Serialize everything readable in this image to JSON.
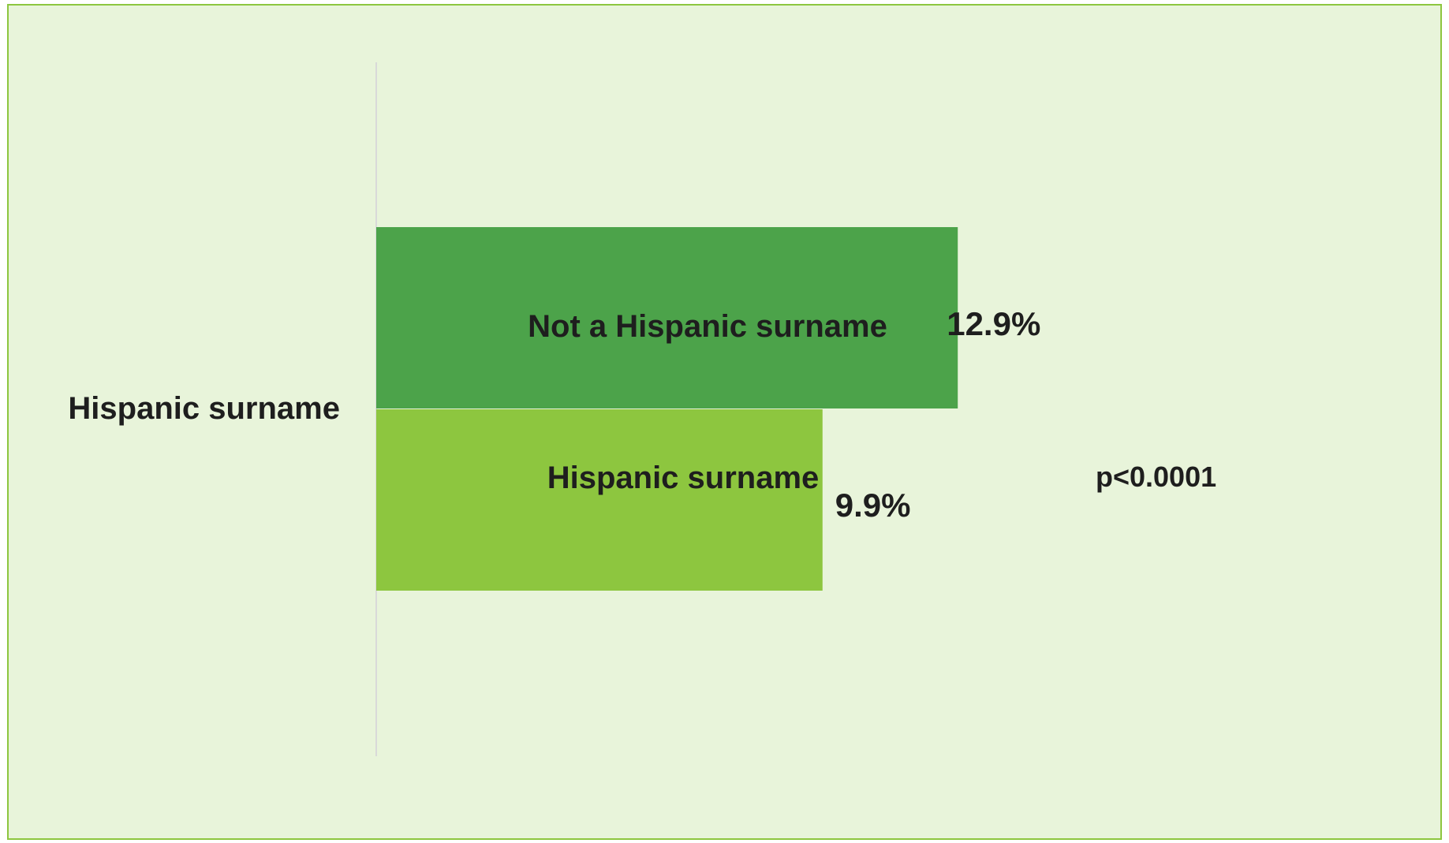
{
  "chart_data": {
    "type": "bar",
    "orientation": "horizontal",
    "categories": [
      "Hispanic surname"
    ],
    "series": [
      {
        "name": "Not a Hispanic surname",
        "values": [
          12.9
        ],
        "value_label": "12.9%",
        "color": "#4ca34a"
      },
      {
        "name": "Hispanic surname",
        "values": [
          9.9
        ],
        "value_label": "9.9%",
        "color": "#8dc63f"
      }
    ],
    "annotation": "p<0.0001",
    "xlim": [
      0,
      23.5
    ],
    "grid": false,
    "legend": "none",
    "background_color": "#e8f4da",
    "border_color": "#8dc63f",
    "axis_color": "#d9d9d9",
    "text_color": "#1e1e1e"
  }
}
